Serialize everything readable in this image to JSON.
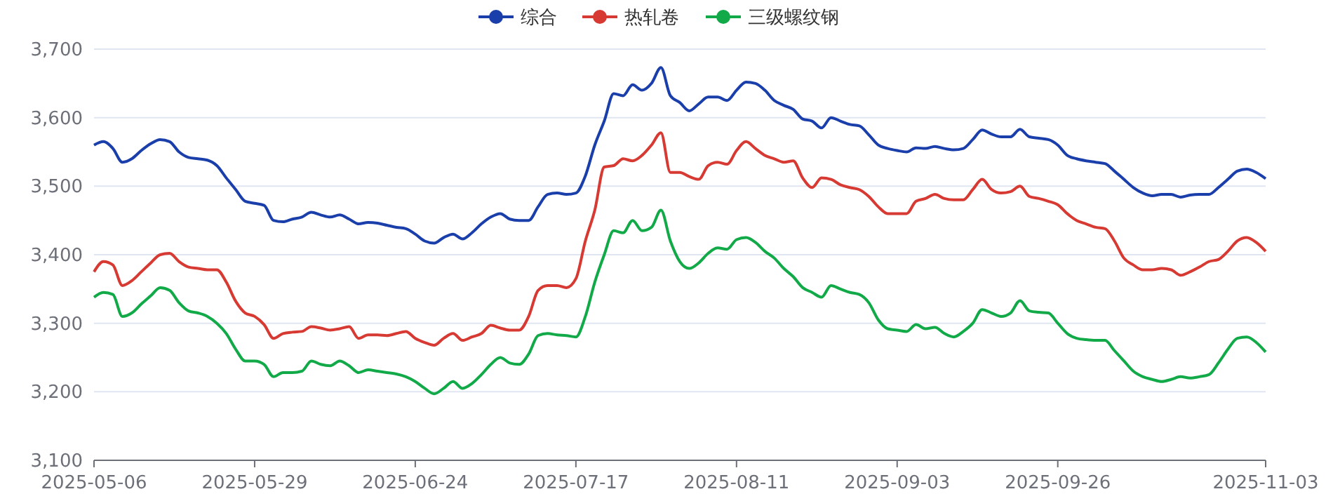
{
  "chart_data": {
    "type": "line",
    "categories": [
      "2025-05-06",
      null,
      null,
      null,
      null,
      null,
      null,
      null,
      null,
      null,
      null,
      null,
      null,
      null,
      null,
      null,
      null,
      "2025-05-29",
      null,
      null,
      null,
      null,
      null,
      null,
      null,
      null,
      null,
      null,
      null,
      null,
      null,
      null,
      null,
      null,
      "2025-06-24",
      null,
      null,
      null,
      null,
      null,
      null,
      null,
      null,
      null,
      null,
      null,
      null,
      null,
      null,
      null,
      null,
      "2025-07-17",
      null,
      null,
      null,
      null,
      null,
      null,
      null,
      null,
      null,
      null,
      null,
      null,
      null,
      null,
      null,
      null,
      "2025-08-11",
      null,
      null,
      null,
      null,
      null,
      null,
      null,
      null,
      null,
      null,
      null,
      null,
      null,
      null,
      null,
      null,
      "2025-09-03",
      null,
      null,
      null,
      null,
      null,
      null,
      null,
      null,
      null,
      null,
      null,
      null,
      null,
      null,
      null,
      null,
      "2025-09-26",
      null,
      null,
      null,
      null,
      null,
      null,
      null,
      null,
      null,
      null,
      null,
      null,
      null,
      null,
      null,
      null,
      null,
      null,
      null,
      null,
      null,
      "2025-11-03"
    ],
    "series": [
      {
        "name": "综合",
        "color": "#1a3faa",
        "values": [
          3560,
          3565,
          3555,
          3535,
          3540,
          3552,
          3562,
          3568,
          3565,
          3550,
          3542,
          3540,
          3538,
          3530,
          3512,
          3495,
          3478,
          3475,
          3472,
          3450,
          3448,
          3452,
          3455,
          3462,
          3458,
          3455,
          3458,
          3452,
          3445,
          3447,
          3446,
          3443,
          3440,
          3438,
          3430,
          3420,
          3417,
          3425,
          3430,
          3423,
          3432,
          3445,
          3455,
          3460,
          3452,
          3450,
          3450,
          3470,
          3488,
          3490,
          3488,
          3490,
          3515,
          3560,
          3595,
          3635,
          3632,
          3648,
          3640,
          3650,
          3673,
          3632,
          3622,
          3610,
          3620,
          3630,
          3630,
          3625,
          3640,
          3652,
          3650,
          3640,
          3625,
          3618,
          3612,
          3598,
          3595,
          3585,
          3600,
          3595,
          3590,
          3588,
          3575,
          3560,
          3555,
          3552,
          3550,
          3556,
          3555,
          3558,
          3555,
          3553,
          3555,
          3568,
          3582,
          3576,
          3572,
          3572,
          3583,
          3572,
          3570,
          3568,
          3560,
          3545,
          3540,
          3537,
          3535,
          3533,
          3522,
          3510,
          3498,
          3490,
          3486,
          3488,
          3488,
          3484,
          3487,
          3488,
          3488,
          3498,
          3510,
          3522,
          3525,
          3520,
          3511
        ]
      },
      {
        "name": "热轧卷",
        "color": "#d63a32",
        "values": [
          3375,
          3390,
          3385,
          3355,
          3362,
          3375,
          3388,
          3400,
          3402,
          3390,
          3382,
          3380,
          3378,
          3378,
          3360,
          3332,
          3315,
          3310,
          3298,
          3278,
          3285,
          3287,
          3288,
          3295,
          3293,
          3290,
          3292,
          3295,
          3278,
          3283,
          3283,
          3282,
          3285,
          3288,
          3278,
          3272,
          3268,
          3278,
          3285,
          3275,
          3280,
          3285,
          3297,
          3293,
          3290,
          3290,
          3310,
          3348,
          3355,
          3355,
          3352,
          3365,
          3420,
          3465,
          3528,
          3530,
          3540,
          3537,
          3545,
          3560,
          3578,
          3520,
          3520,
          3514,
          3510,
          3530,
          3535,
          3532,
          3552,
          3565,
          3555,
          3545,
          3540,
          3535,
          3537,
          3512,
          3498,
          3512,
          3510,
          3502,
          3498,
          3495,
          3485,
          3470,
          3460,
          3460,
          3460,
          3478,
          3482,
          3488,
          3482,
          3480,
          3480,
          3495,
          3510,
          3495,
          3490,
          3492,
          3500,
          3485,
          3482,
          3478,
          3473,
          3460,
          3450,
          3445,
          3440,
          3438,
          3420,
          3395,
          3385,
          3378,
          3378,
          3380,
          3378,
          3370,
          3375,
          3382,
          3390,
          3393,
          3405,
          3420,
          3425,
          3418,
          3405
        ]
      },
      {
        "name": "三级螺纹钢",
        "color": "#12aa48",
        "values": [
          3338,
          3345,
          3342,
          3310,
          3315,
          3328,
          3340,
          3352,
          3348,
          3330,
          3318,
          3315,
          3310,
          3300,
          3285,
          3262,
          3245,
          3245,
          3240,
          3222,
          3228,
          3228,
          3230,
          3245,
          3240,
          3238,
          3245,
          3238,
          3228,
          3232,
          3230,
          3228,
          3226,
          3222,
          3215,
          3205,
          3197,
          3205,
          3215,
          3205,
          3212,
          3225,
          3240,
          3250,
          3242,
          3240,
          3255,
          3282,
          3285,
          3283,
          3282,
          3280,
          3310,
          3360,
          3400,
          3435,
          3432,
          3450,
          3435,
          3440,
          3465,
          3420,
          3390,
          3380,
          3388,
          3402,
          3410,
          3408,
          3422,
          3425,
          3418,
          3405,
          3395,
          3380,
          3368,
          3352,
          3345,
          3338,
          3355,
          3350,
          3345,
          3342,
          3330,
          3305,
          3292,
          3290,
          3288,
          3298,
          3292,
          3294,
          3285,
          3280,
          3288,
          3300,
          3320,
          3315,
          3310,
          3315,
          3333,
          3318,
          3316,
          3315,
          3300,
          3285,
          3278,
          3276,
          3275,
          3275,
          3260,
          3245,
          3230,
          3222,
          3218,
          3215,
          3218,
          3222,
          3220,
          3222,
          3225,
          3242,
          3262,
          3278,
          3280,
          3272,
          3258
        ]
      }
    ],
    "ylim": [
      3100,
      3700
    ],
    "yticks": [
      {
        "value": 3100,
        "label": "3,100"
      },
      {
        "value": 3200,
        "label": "3,200"
      },
      {
        "value": 3300,
        "label": "3,300"
      },
      {
        "value": 3400,
        "label": "3,400"
      },
      {
        "value": 3500,
        "label": "3,500"
      },
      {
        "value": 3600,
        "label": "3,600"
      },
      {
        "value": 3700,
        "label": "3,700"
      }
    ],
    "grid": "y",
    "legend": "top",
    "marker": "none",
    "line_style": "solid"
  }
}
